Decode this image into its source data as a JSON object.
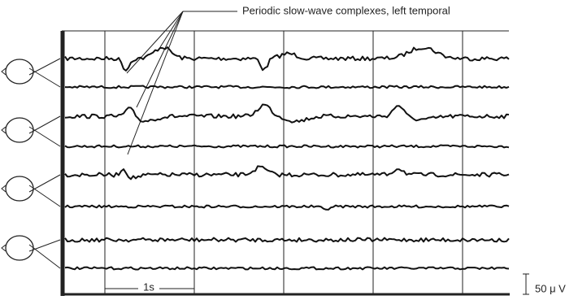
{
  "annotation": "Periodic slow-wave complexes, left temporal",
  "time_scale": "1s",
  "amplitude_scale": "50 μ V"
}
